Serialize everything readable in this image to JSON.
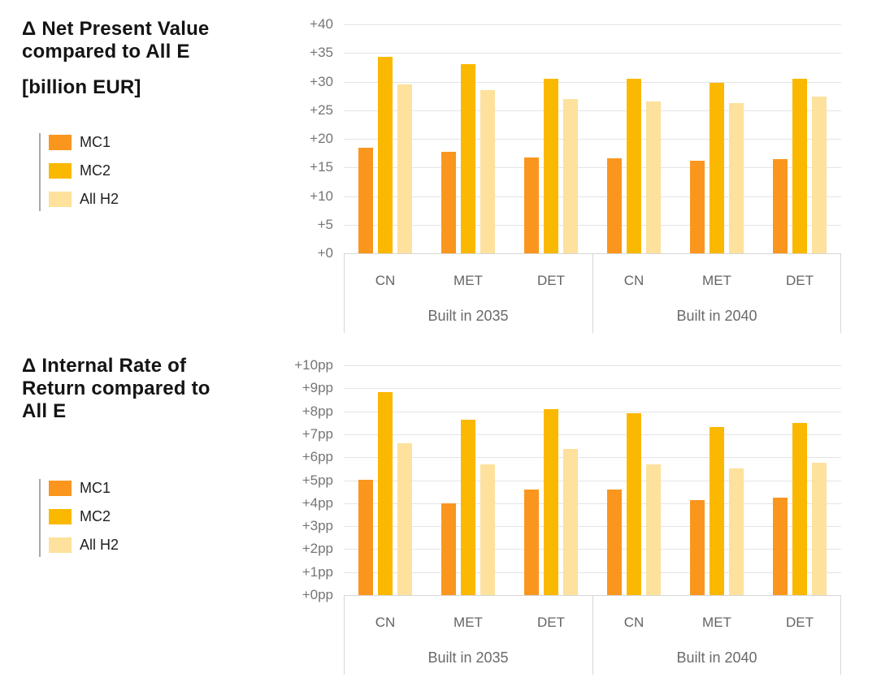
{
  "palette": {
    "mc1": "#FA961E",
    "mc2": "#FBB800",
    "all_h2": "#FDE19C",
    "gridline": "#E4E4E4",
    "axis_box_border": "#D6D6D6",
    "tick_text": "#757575",
    "category_text": "#646464",
    "title_text": "#141414",
    "legend_rule": "#A8A8A8",
    "background": "#FFFFFF"
  },
  "chart_data": [
    {
      "type": "bar",
      "title": "Δ Net Present Value compared to All E",
      "title_lines": [
        "Δ Net Present Value",
        "compared to All E"
      ],
      "unit_label": "[billion EUR]",
      "ylim": [
        0,
        40
      ],
      "ystep": 5,
      "ytick_labels": [
        "+40",
        "+35",
        "+30",
        "+25",
        "+20",
        "+15",
        "+10",
        "+5",
        "+0"
      ],
      "grid": true,
      "legend_position": "left",
      "group_labels": [
        "Built in 2035",
        "Built in 2040"
      ],
      "categories": [
        "CN",
        "MET",
        "DET"
      ],
      "series": [
        {
          "name": "MC1",
          "color": "#FA961E",
          "values": [
            [
              18.5,
              17.8,
              16.7
            ],
            [
              16.6,
              16.1,
              16.4
            ]
          ]
        },
        {
          "name": "MC2",
          "color": "#FBB800",
          "values": [
            [
              34.3,
              33.0,
              30.5
            ],
            [
              30.5,
              29.8,
              30.5
            ]
          ]
        },
        {
          "name": "All H2",
          "color": "#FDE19C",
          "values": [
            [
              29.5,
              28.5,
              26.9
            ],
            [
              26.5,
              26.3,
              27.4
            ]
          ]
        }
      ]
    },
    {
      "type": "bar",
      "title": "Δ Internal Rate of Return compared to All E",
      "title_lines": [
        "Δ Internal Rate of",
        "Return compared to",
        "All E"
      ],
      "unit_label": "",
      "ylim": [
        0,
        10
      ],
      "ystep": 1,
      "ytick_labels": [
        "+10pp",
        "+9pp",
        "+8pp",
        "+7pp",
        "+6pp",
        "+5pp",
        "+4pp",
        "+3pp",
        "+2pp",
        "+1pp",
        "+0pp"
      ],
      "grid": true,
      "legend_position": "left",
      "group_labels": [
        "Built in 2035",
        "Built in 2040"
      ],
      "categories": [
        "CN",
        "MET",
        "DET"
      ],
      "series": [
        {
          "name": "MC1",
          "color": "#FA961E",
          "values": [
            [
              5.0,
              4.0,
              4.6
            ],
            [
              4.6,
              4.15,
              4.25
            ]
          ]
        },
        {
          "name": "MC2",
          "color": "#FBB800",
          "values": [
            [
              8.85,
              7.65,
              8.1
            ],
            [
              7.9,
              7.3,
              7.5
            ]
          ]
        },
        {
          "name": "All H2",
          "color": "#FDE19C",
          "values": [
            [
              6.6,
              5.7,
              6.35
            ],
            [
              5.7,
              5.5,
              5.75
            ]
          ]
        }
      ]
    }
  ]
}
